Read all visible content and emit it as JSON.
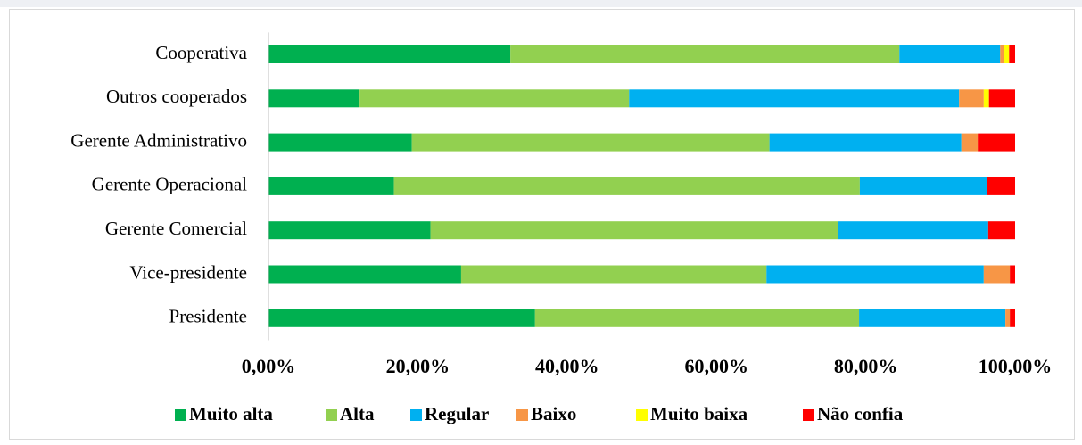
{
  "chart_data": {
    "type": "stacked_barh",
    "categories": [
      "Cooperativa",
      "Outros cooperados",
      "Gerente Administrativo",
      "Gerente Operacional",
      "Gerente Comercial",
      "Vice-presidente",
      "Presidente"
    ],
    "series": [
      {
        "name": "Muito alta",
        "color": "#00b050",
        "values": [
          32.4,
          12.2,
          19.2,
          16.8,
          21.7,
          25.8,
          35.7
        ]
      },
      {
        "name": "Alta",
        "color": "#92d050",
        "values": [
          52.1,
          36.1,
          47.9,
          62.4,
          54.6,
          40.9,
          43.4
        ]
      },
      {
        "name": "Regular",
        "color": "#00b0f0",
        "values": [
          13.5,
          44.2,
          25.7,
          17.0,
          20.1,
          29.1,
          19.6
        ]
      },
      {
        "name": "Baixo",
        "color": "#f79646",
        "values": [
          0.5,
          3.3,
          2.2,
          0,
          0,
          3.5,
          0.6
        ]
      },
      {
        "name": "Muito baixa",
        "color": "#ffff00",
        "values": [
          0.7,
          0.7,
          0,
          0,
          0,
          0,
          0
        ]
      },
      {
        "name": "Não confia",
        "color": "#ff0000",
        "values": [
          0.8,
          3.5,
          5.0,
          3.8,
          3.6,
          0.7,
          0.7
        ]
      }
    ],
    "xlim": [
      0,
      100
    ],
    "xticks": [
      {
        "value": 0,
        "label": "0,00%"
      },
      {
        "value": 20,
        "label": "20,00%"
      },
      {
        "value": 40,
        "label": "40,00%"
      },
      {
        "value": 60,
        "label": "60,00%"
      },
      {
        "value": 80,
        "label": "80,00%"
      },
      {
        "value": 100,
        "label": "100,00%"
      }
    ],
    "legend": "bottom"
  }
}
